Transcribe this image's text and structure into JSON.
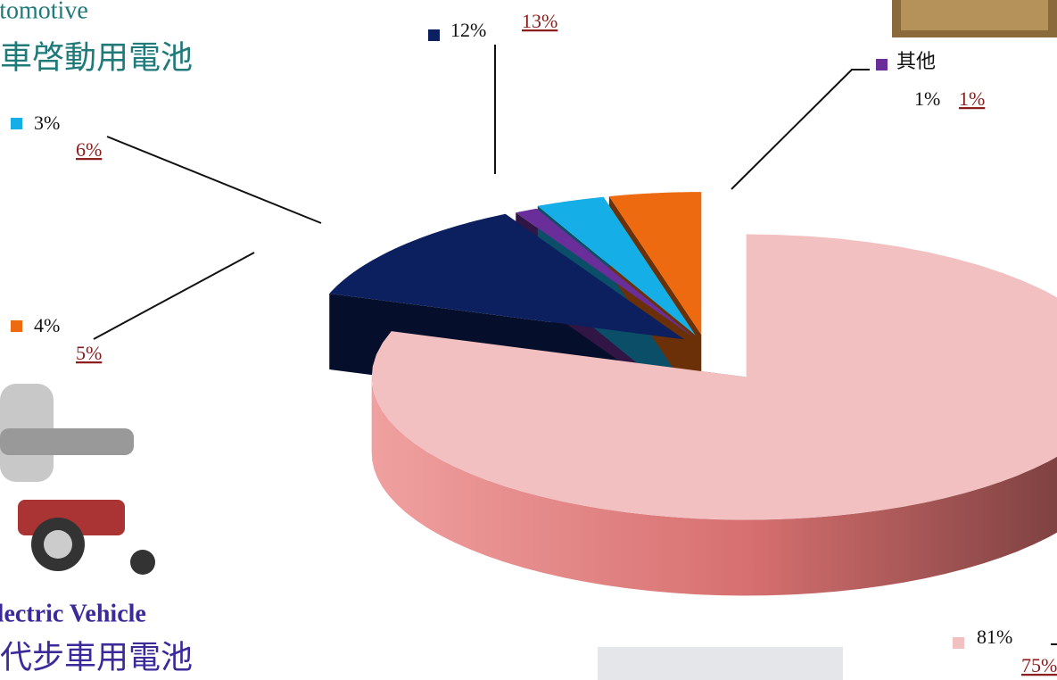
{
  "chart_data": {
    "type": "pie3d",
    "annotations": [
      "Automotive",
      "汽車啓動用電池",
      "Electric Vehicle",
      "電動代步車用電池"
    ],
    "categories": [
      null,
      null,
      "其他",
      null,
      null
    ],
    "colors": [
      "#f2c0c0",
      "#0c1f5e",
      "#6a2e9a",
      "#16aee6",
      "#ee6a10"
    ],
    "series": [
      {
        "values": [
          81,
          12,
          1,
          3,
          4
        ],
        "value_labels": [
          "81%",
          "12%",
          "1%",
          "3%",
          "4%"
        ]
      },
      {
        "values": [
          75,
          13,
          1,
          6,
          5
        ],
        "value_labels": [
          "75%",
          "13%",
          "1%",
          "6%",
          "5%"
        ]
      }
    ]
  }
}
